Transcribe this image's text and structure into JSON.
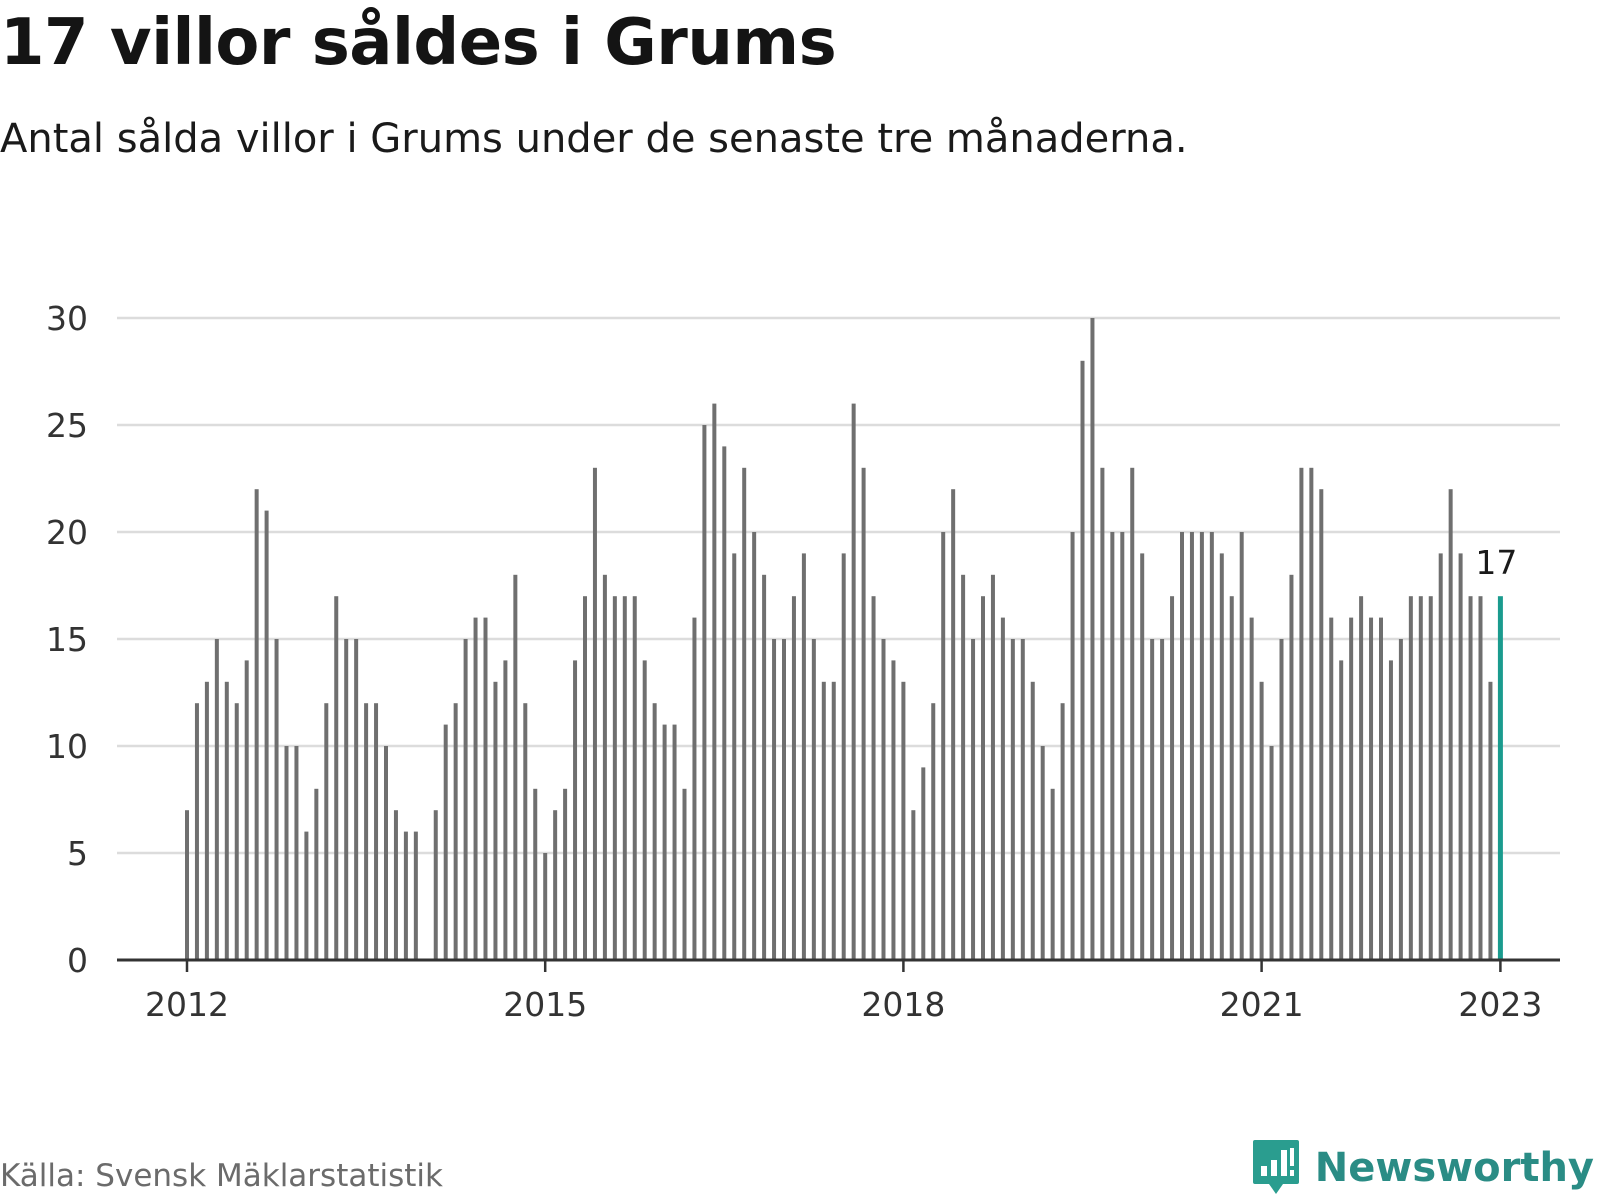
{
  "title": "17 villor såldes i Grums",
  "subtitle": "Antal sålda villor i Grums under de senaste tre månaderna.",
  "source": "Källa: Svensk Mäklarstatistik",
  "brand": {
    "name": "Newsworthy",
    "icon": "newsworthy-logo-icon",
    "color": "#2a9d8f"
  },
  "colors": {
    "bar": "#6f6f6f",
    "highlight": "#1a9b8e",
    "grid": "#dcdcdc",
    "axis": "#333333"
  },
  "chart_data": {
    "type": "bar",
    "title": "17 villor såldes i Grums",
    "subtitle": "Antal sålda villor i Grums under de senaste tre månaderna.",
    "xlabel": "",
    "ylabel": "",
    "ylim": [
      0,
      30
    ],
    "yticks": [
      "0",
      "5",
      "10",
      "15",
      "20",
      "25",
      "30"
    ],
    "xticks": [
      "2012",
      "2015",
      "2018",
      "2021",
      "2023"
    ],
    "grid": true,
    "x_start": "2012-01",
    "x_end": "2023-01",
    "frequency": "monthly",
    "series": [
      {
        "values": [
          7,
          12,
          13,
          15,
          13,
          12,
          14,
          22,
          21,
          15,
          10,
          10,
          6,
          8,
          12,
          17,
          15,
          15,
          12,
          12,
          10,
          7,
          6,
          6,
          0,
          7,
          11,
          12,
          15,
          16,
          16,
          13,
          14,
          18,
          12,
          8,
          5,
          7,
          8,
          14,
          17,
          23,
          18,
          17,
          17,
          17,
          14,
          12,
          11,
          11,
          8,
          16,
          25,
          26,
          24,
          19,
          23,
          20,
          18,
          15,
          15,
          17,
          19,
          15,
          13,
          13,
          19,
          26,
          23,
          17,
          15,
          14,
          13,
          7,
          9,
          12,
          20,
          22,
          18,
          15,
          17,
          18,
          16,
          15,
          15,
          13,
          10,
          8,
          12,
          20,
          28,
          30,
          23,
          20,
          20,
          23,
          19,
          15,
          15,
          17,
          20,
          20,
          20,
          20,
          19,
          17,
          20,
          16,
          13,
          10,
          15,
          18,
          23,
          23,
          22,
          16,
          14,
          16,
          17,
          16,
          16,
          14,
          15,
          17,
          17,
          17,
          19,
          22,
          19,
          17,
          17,
          13,
          17
        ]
      }
    ],
    "highlight": {
      "x": "2023-01",
      "value": 17,
      "label": "17"
    }
  }
}
